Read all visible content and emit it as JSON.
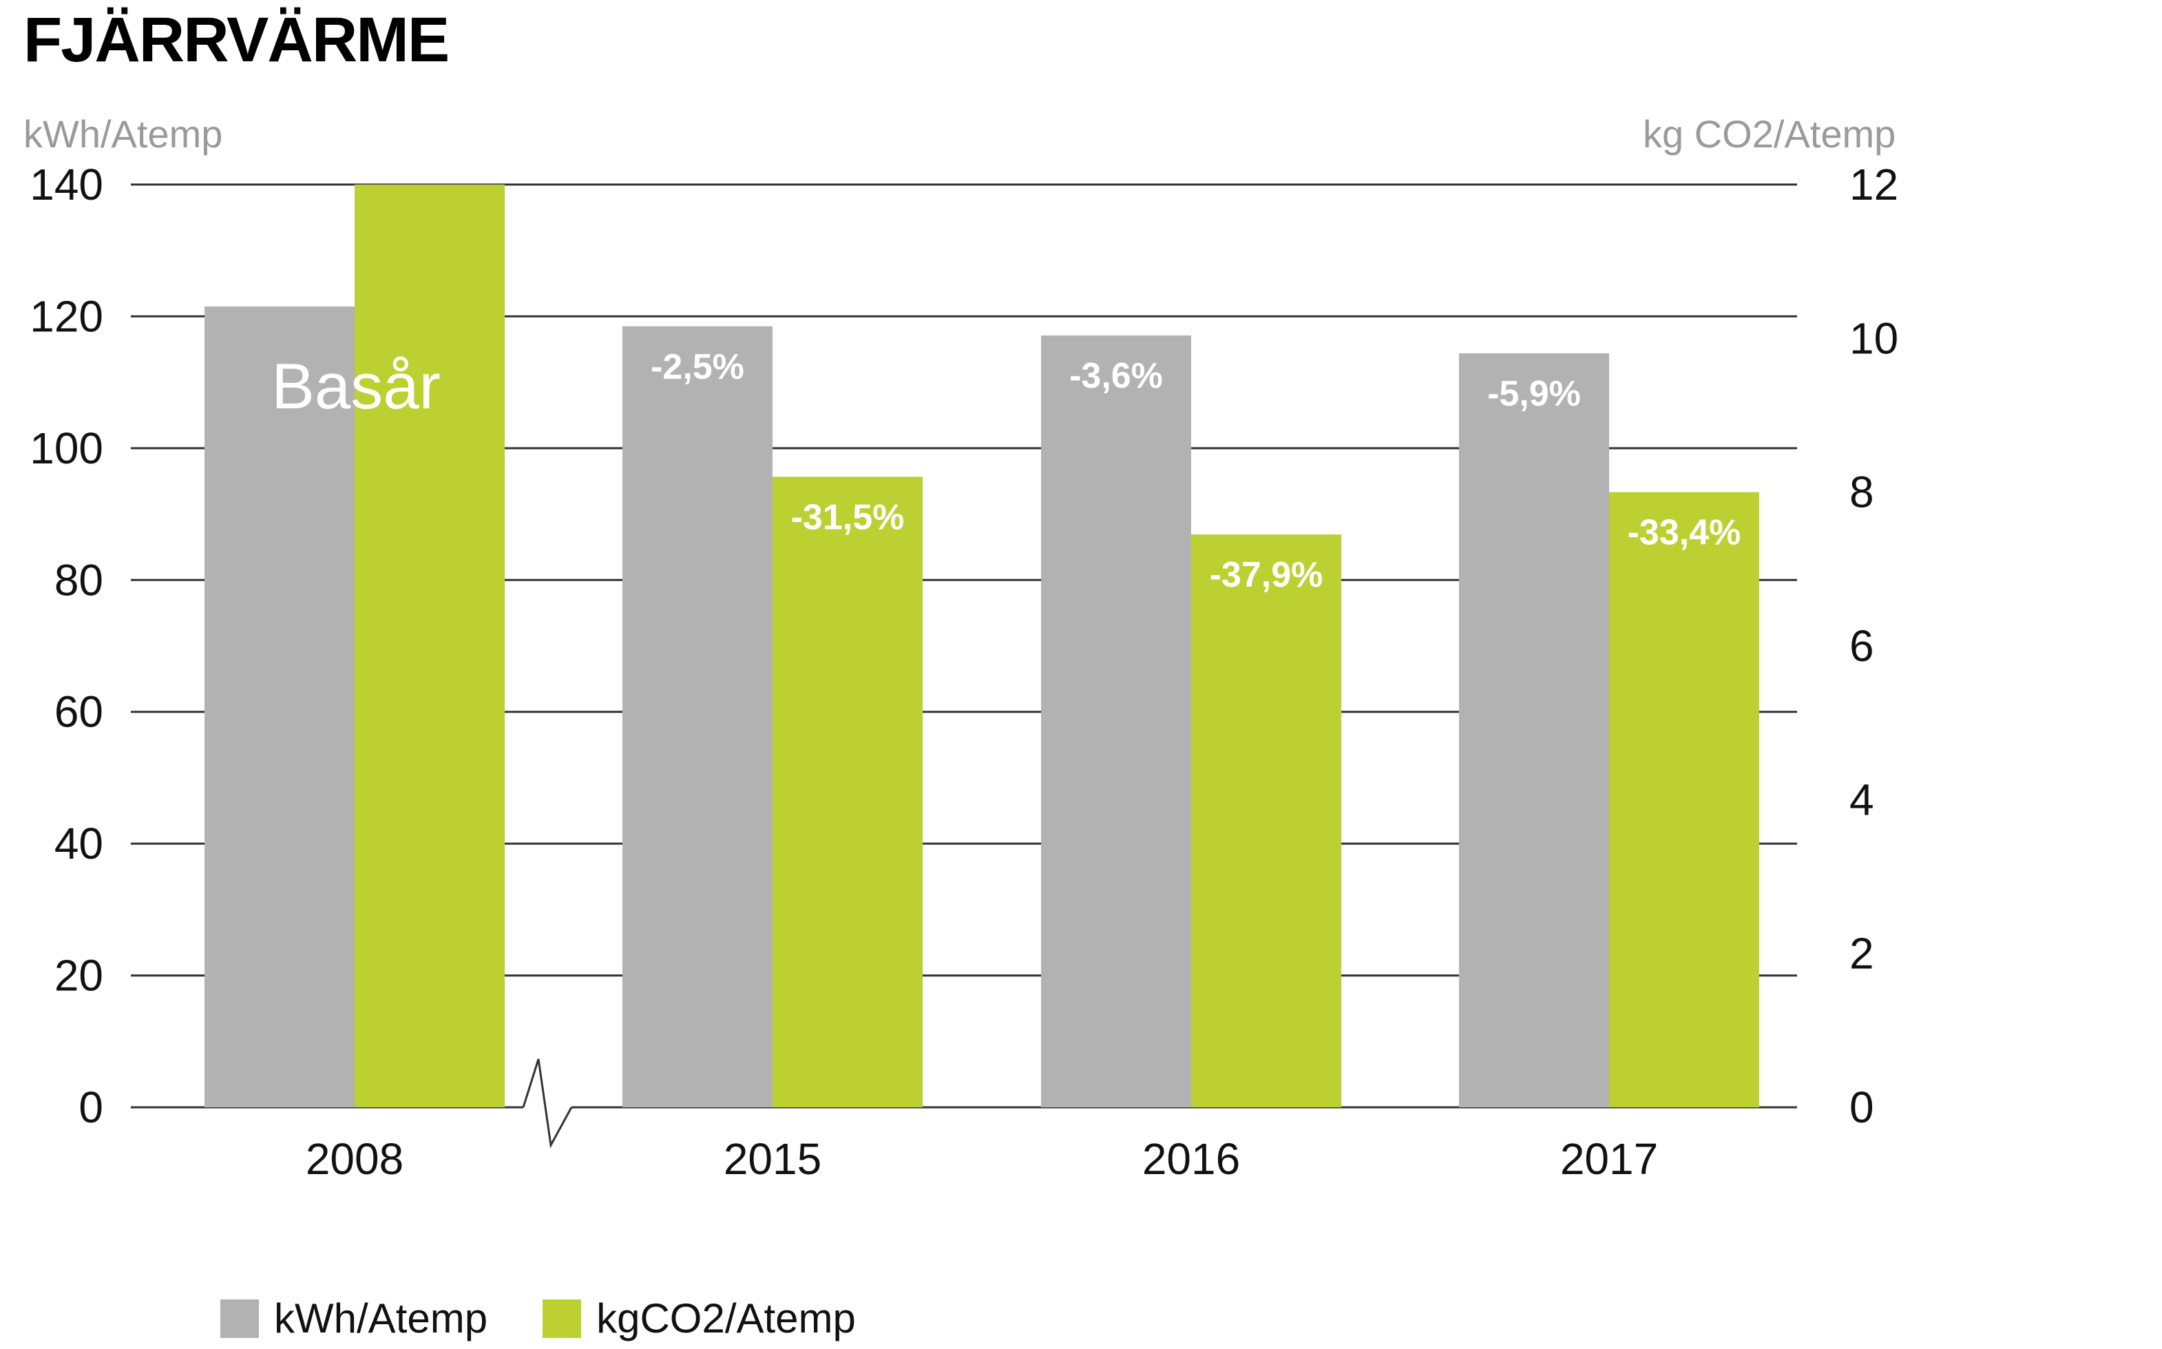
{
  "title": "FJÄRRVÄRME",
  "left_axis_unit": "kWh/Atemp",
  "right_axis_unit": "kg CO2/Atemp",
  "colors": {
    "kwh": "#b2b2b2",
    "co2": "#bcd032",
    "grid": "#333333"
  },
  "chart_data": {
    "type": "bar",
    "categories": [
      "2008",
      "2015",
      "2016",
      "2017"
    ],
    "series": [
      {
        "name": "kWh/Atemp",
        "axis": "left",
        "values": [
          121.5,
          118.5,
          117.1,
          114.4
        ],
        "labels": [
          "Basår",
          "-2,5%",
          "-3,6%",
          "-5,9%"
        ]
      },
      {
        "name": "kgCO2/Atemp",
        "axis": "right",
        "values": [
          12.0,
          8.2,
          7.45,
          8.0
        ],
        "labels": [
          "",
          "-31,5%",
          "-37,9%",
          "-33,4%"
        ]
      }
    ],
    "ylim_left": [
      0,
      140
    ],
    "yticks_left": [
      "0",
      "20",
      "40",
      "60",
      "80",
      "100",
      "120",
      "140"
    ],
    "ylim_right": [
      0,
      12
    ],
    "yticks_right": [
      "0",
      "2",
      "4",
      "6",
      "8",
      "10",
      "12"
    ],
    "axis_break_between": [
      "2008",
      "2015"
    ],
    "grid": true,
    "legend_position": "bottom-left"
  },
  "legend": [
    {
      "label": "kWh/Atemp",
      "color": "#b2b2b2"
    },
    {
      "label": "kgCO2/Atemp",
      "color": "#bcd032"
    }
  ]
}
